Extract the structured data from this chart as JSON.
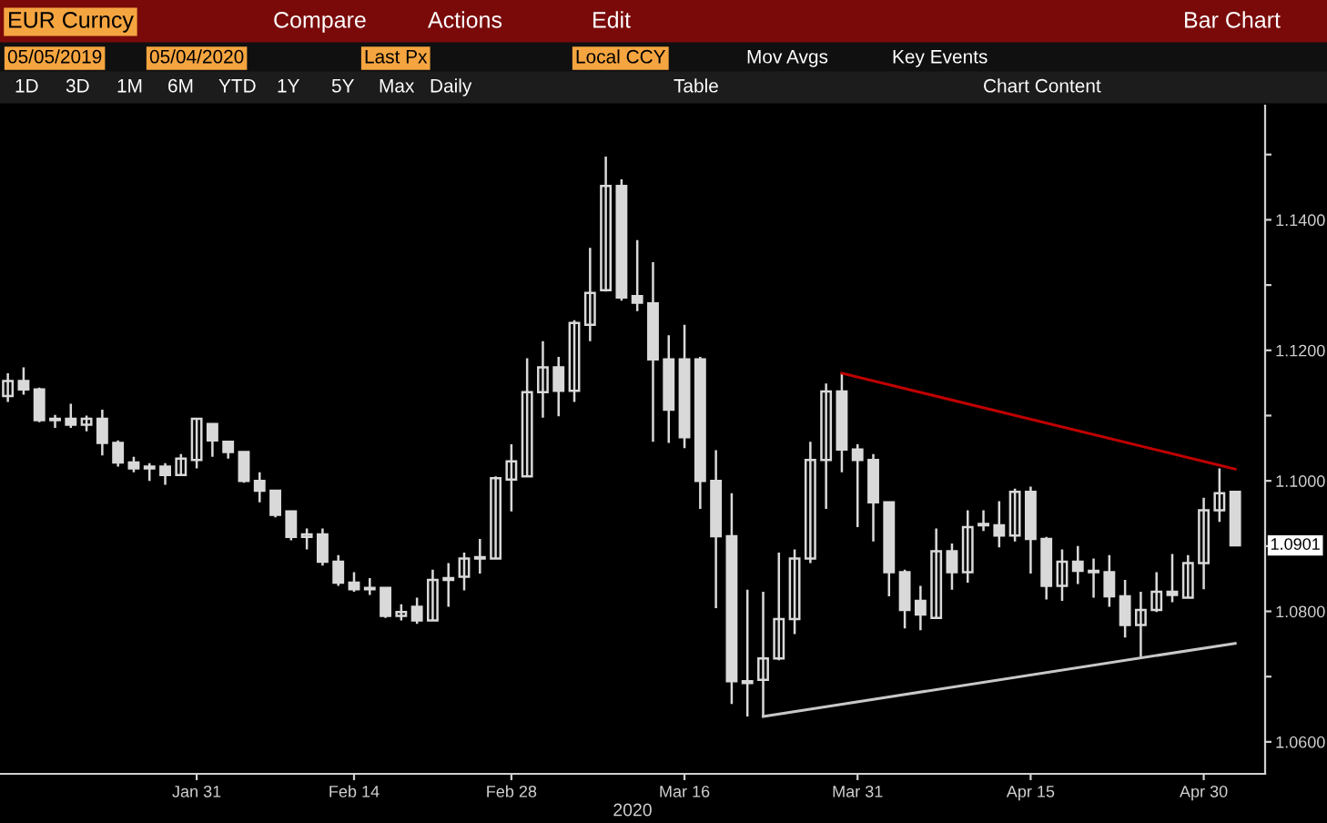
{
  "chart_data": {
    "type": "candlestick",
    "title": "EUR Curncy",
    "xlabel": "2020",
    "categories": [
      null,
      null,
      null,
      null,
      null,
      null,
      null,
      null,
      null,
      null,
      null,
      null,
      "Jan 31",
      null,
      null,
      null,
      null,
      null,
      null,
      null,
      null,
      null,
      "Feb 14",
      null,
      null,
      null,
      null,
      null,
      null,
      null,
      null,
      null,
      "Feb 28",
      null,
      null,
      null,
      null,
      null,
      null,
      null,
      null,
      null,
      null,
      "Mar 16",
      null,
      null,
      null,
      null,
      null,
      null,
      null,
      null,
      null,
      null,
      "Mar 31",
      null,
      null,
      null,
      null,
      null,
      null,
      null,
      null,
      null,
      null,
      "Apr 15",
      null,
      null,
      null,
      null,
      null,
      null,
      null,
      null,
      null,
      null,
      "Apr 30",
      null,
      null
    ],
    "ohlc": [
      [
        1.113,
        1.1165,
        1.1121,
        1.1153
      ],
      [
        1.1153,
        1.1174,
        1.1132,
        1.114
      ],
      [
        1.114,
        1.1143,
        1.109,
        1.1093
      ],
      [
        1.1093,
        1.1101,
        1.1081,
        1.1095
      ],
      [
        1.1095,
        1.1118,
        1.1081,
        1.1086
      ],
      [
        1.1086,
        1.11,
        1.1076,
        1.1095
      ],
      [
        1.1095,
        1.1109,
        1.1039,
        1.1058
      ],
      [
        1.1058,
        1.1062,
        1.1022,
        1.1028
      ],
      [
        1.1028,
        1.1037,
        1.1013,
        1.1019
      ],
      [
        1.1019,
        1.1027,
        1.1,
        1.1022
      ],
      [
        1.1022,
        1.1027,
        1.0994,
        1.1009
      ],
      [
        1.1009,
        1.1041,
        1.1009,
        1.1034
      ],
      [
        1.1032,
        1.1097,
        1.1019,
        1.1095
      ],
      [
        1.1087,
        1.1087,
        1.1037,
        1.1062
      ],
      [
        1.106,
        1.106,
        1.1034,
        1.1044
      ],
      [
        1.1044,
        1.1044,
        1.0997,
        1.1
      ],
      [
        1.1,
        1.1013,
        1.0967,
        1.0985
      ],
      [
        1.0985,
        1.0985,
        1.0944,
        1.0948
      ],
      [
        1.0953,
        1.0955,
        1.0909,
        1.0914
      ],
      [
        1.0914,
        1.0927,
        1.0895,
        1.0918
      ],
      [
        1.0918,
        1.0927,
        1.087,
        1.0876
      ],
      [
        1.0876,
        1.0886,
        1.0839,
        1.0844
      ],
      [
        1.0844,
        1.086,
        1.083,
        1.0834
      ],
      [
        1.0834,
        1.0851,
        1.0825,
        1.0836
      ],
      [
        1.0836,
        1.0837,
        1.079,
        1.0793
      ],
      [
        1.0793,
        1.0811,
        1.0786,
        1.0799
      ],
      [
        1.0807,
        1.0821,
        1.0781,
        1.0786
      ],
      [
        1.0786,
        1.0864,
        1.0786,
        1.0848
      ],
      [
        1.0848,
        1.0874,
        1.0807,
        1.0851
      ],
      [
        1.0853,
        1.089,
        1.0832,
        1.0881
      ],
      [
        1.0881,
        1.0911,
        1.0858,
        1.0883
      ],
      [
        1.0881,
        1.1007,
        1.0881,
        1.1004
      ],
      [
        1.1002,
        1.1056,
        1.0953,
        1.103
      ],
      [
        1.1007,
        1.1188,
        1.1007,
        1.1136
      ],
      [
        1.1136,
        1.1214,
        1.1097,
        1.1174
      ],
      [
        1.1174,
        1.119,
        1.1099,
        1.1138
      ],
      [
        1.1138,
        1.1246,
        1.1121,
        1.1242
      ],
      [
        1.1239,
        1.1357,
        1.1214,
        1.1288
      ],
      [
        1.1292,
        1.1497,
        1.129,
        1.1452
      ],
      [
        1.1452,
        1.1462,
        1.1276,
        1.1281
      ],
      [
        1.1283,
        1.1369,
        1.126,
        1.1273
      ],
      [
        1.1272,
        1.1335,
        1.106,
        1.1186
      ],
      [
        1.1186,
        1.1223,
        1.1058,
        1.1109
      ],
      [
        1.1186,
        1.1239,
        1.105,
        1.1067
      ],
      [
        1.1186,
        1.119,
        1.0957,
        1.1
      ],
      [
        1.1,
        1.1047,
        1.0805,
        1.0915
      ],
      [
        1.0915,
        1.0981,
        1.0658,
        1.0693
      ],
      [
        1.0693,
        1.0833,
        1.0639,
        1.069
      ],
      [
        1.0695,
        1.083,
        1.0639,
        1.0728
      ],
      [
        1.0728,
        1.089,
        1.0725,
        1.0788
      ],
      [
        1.0788,
        1.0895,
        1.0765,
        1.0881
      ],
      [
        1.0881,
        1.106,
        1.0874,
        1.1032
      ],
      [
        1.1032,
        1.1149,
        1.0957,
        1.1137
      ],
      [
        1.1137,
        1.1165,
        1.1013,
        1.1048
      ],
      [
        1.1048,
        1.1056,
        1.0929,
        1.1032
      ],
      [
        1.1032,
        1.1041,
        1.0907,
        1.0967
      ],
      [
        1.0967,
        1.0969,
        1.0823,
        1.086
      ],
      [
        1.086,
        1.0864,
        1.0774,
        1.0802
      ],
      [
        1.0816,
        1.0839,
        1.0771,
        1.0795
      ],
      [
        1.079,
        1.0927,
        1.0788,
        1.0892
      ],
      [
        1.0892,
        1.0904,
        1.0833,
        1.086
      ],
      [
        1.086,
        1.0955,
        1.0844,
        1.0929
      ],
      [
        1.0934,
        1.0955,
        1.0923,
        1.0932
      ],
      [
        1.0932,
        1.0969,
        1.0898,
        1.0916
      ],
      [
        1.0916,
        1.0988,
        1.0907,
        1.0983
      ],
      [
        1.0983,
        1.0991,
        1.0858,
        1.0911
      ],
      [
        1.0911,
        1.0914,
        1.0818,
        1.0839
      ],
      [
        1.0839,
        1.0895,
        1.0816,
        1.0876
      ],
      [
        1.0876,
        1.09,
        1.0842,
        1.0862
      ],
      [
        1.0862,
        1.0881,
        1.0821,
        1.086
      ],
      [
        1.086,
        1.0886,
        1.0807,
        1.0823
      ],
      [
        1.0823,
        1.0848,
        1.076,
        1.0779
      ],
      [
        1.0779,
        1.083,
        1.073,
        1.0802
      ],
      [
        1.0802,
        1.086,
        1.0799,
        1.083
      ],
      [
        1.083,
        1.0888,
        1.0814,
        1.0825
      ],
      [
        1.0821,
        1.0886,
        1.0821,
        1.0874
      ],
      [
        1.0874,
        1.0974,
        1.0834,
        1.0955
      ],
      [
        1.0955,
        1.1019,
        1.0937,
        1.0981
      ],
      [
        1.0983,
        1.0985,
        1.09,
        1.0901
      ]
    ],
    "color": "#d9d9d9",
    "series": [
      {
        "type": "line",
        "color": "#c00000",
        "values": [
          null,
          null,
          null,
          null,
          null,
          null,
          null,
          null,
          null,
          null,
          null,
          null,
          null,
          null,
          null,
          null,
          null,
          null,
          null,
          null,
          null,
          null,
          null,
          null,
          null,
          null,
          null,
          null,
          null,
          null,
          null,
          null,
          null,
          null,
          null,
          null,
          null,
          null,
          null,
          null,
          null,
          null,
          null,
          null,
          null,
          null,
          null,
          null,
          null,
          null,
          null,
          null,
          null,
          1.1165,
          null,
          null,
          null,
          null,
          null,
          null,
          null,
          null,
          null,
          null,
          null,
          null,
          null,
          null,
          null,
          null,
          null,
          null,
          null,
          null,
          null,
          null,
          null,
          null,
          1.1018
        ]
      },
      {
        "type": "line",
        "color": "#c8c8c8",
        "values": [
          null,
          null,
          null,
          null,
          null,
          null,
          null,
          null,
          null,
          null,
          null,
          null,
          null,
          null,
          null,
          null,
          null,
          null,
          null,
          null,
          null,
          null,
          null,
          null,
          null,
          null,
          null,
          null,
          null,
          null,
          null,
          null,
          null,
          null,
          null,
          null,
          null,
          null,
          null,
          null,
          null,
          null,
          null,
          null,
          null,
          null,
          null,
          null,
          1.0639,
          null,
          null,
          null,
          null,
          null,
          null,
          null,
          null,
          null,
          null,
          null,
          null,
          null,
          null,
          null,
          null,
          null,
          null,
          null,
          null,
          null,
          null,
          null,
          null,
          null,
          null,
          null,
          null,
          null,
          1.0751
        ]
      }
    ],
    "ylim": [
      1.0551,
      1.1575
    ],
    "yticks": [
      {
        "value": 1.06,
        "label": "1.0600"
      },
      {
        "value": 1.07,
        "label": null
      },
      {
        "value": 1.08,
        "label": "1.0800"
      },
      {
        "value": 1.09,
        "label": null
      },
      {
        "value": 1.1,
        "label": "1.1000"
      },
      {
        "value": 1.11,
        "label": null
      },
      {
        "value": 1.12,
        "label": "1.1200"
      },
      {
        "value": 1.13,
        "label": null
      },
      {
        "value": 1.14,
        "label": "1.1400"
      },
      {
        "value": 1.15,
        "label": null
      }
    ],
    "annotations": [
      "1.0901",
      "Compare",
      "Actions",
      "Edit",
      "Bar Chart",
      "05/05/2019",
      "05/04/2020",
      "Last Px",
      "Local CCY",
      "Mov Avgs",
      "Key Events",
      "1D",
      "3D",
      "1M",
      "6M",
      "YTD",
      "1Y",
      "5Y",
      "Max",
      "Daily",
      "Table",
      "Chart Content"
    ],
    "grid": false,
    "legend": false
  }
}
